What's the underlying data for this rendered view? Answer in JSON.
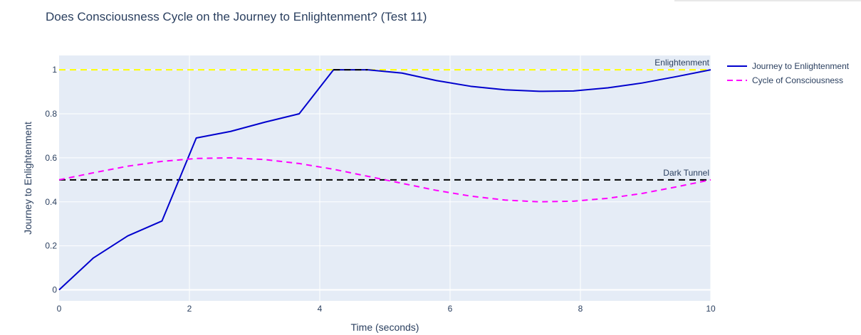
{
  "chart_data": {
    "type": "line",
    "title": "Does Consciousness Cycle on the Journey to Enlightenment? (Test 11)",
    "xlabel": "Time (seconds)",
    "ylabel": "Journey to Enlightenment",
    "xlim": [
      0,
      10
    ],
    "ylim": [
      -0.05,
      1.065
    ],
    "xticks": [
      0,
      2,
      4,
      6,
      8,
      10
    ],
    "yticks": [
      0,
      0.2,
      0.4,
      0.6,
      0.8,
      1
    ],
    "ytick_labels": [
      "0",
      "0.2",
      "0.4",
      "0.6",
      "0.8",
      "1"
    ],
    "grid": true,
    "legend_position": "top-right, outside plot",
    "series": [
      {
        "name": "Journey to Enlightenment",
        "color": "#0000cd",
        "dash": "solid",
        "x": [
          0,
          0.526,
          1.053,
          1.579,
          2.105,
          2.632,
          3.158,
          3.684,
          4.211,
          4.737,
          5.263,
          5.789,
          6.316,
          6.842,
          7.368,
          7.895,
          8.421,
          8.947,
          9.474,
          10
        ],
        "y": [
          0,
          0.145,
          0.245,
          0.313,
          0.69,
          0.72,
          0.762,
          0.8,
          1.0,
          1.0,
          0.985,
          0.951,
          0.925,
          0.909,
          0.902,
          0.904,
          0.918,
          0.94,
          0.969,
          1.0
        ]
      },
      {
        "name": "Cycle of Consciousness",
        "color": "#ff00ff",
        "dash": "dashed",
        "x": [
          0,
          0.526,
          1.053,
          1.579,
          2.105,
          2.632,
          3.158,
          3.684,
          4.211,
          4.737,
          5.263,
          5.789,
          6.316,
          6.842,
          7.368,
          7.895,
          8.421,
          8.947,
          9.474,
          10
        ],
        "y": [
          0.5,
          0.532,
          0.562,
          0.584,
          0.597,
          0.6,
          0.592,
          0.574,
          0.548,
          0.516,
          0.484,
          0.452,
          0.426,
          0.408,
          0.4,
          0.403,
          0.416,
          0.438,
          0.468,
          0.5
        ]
      }
    ],
    "reference_lines": [
      {
        "label": "Enlightenment",
        "y": 1,
        "color": "#ffff00",
        "dash": "dashed"
      },
      {
        "label": "Dark Tunnel",
        "y": 0.5,
        "color": "#000000",
        "dash": "dashed"
      }
    ],
    "highlight_segment": {
      "x": [
        4.211,
        4.737
      ],
      "y": 1,
      "color": "#000000",
      "dash": "dashed"
    }
  }
}
